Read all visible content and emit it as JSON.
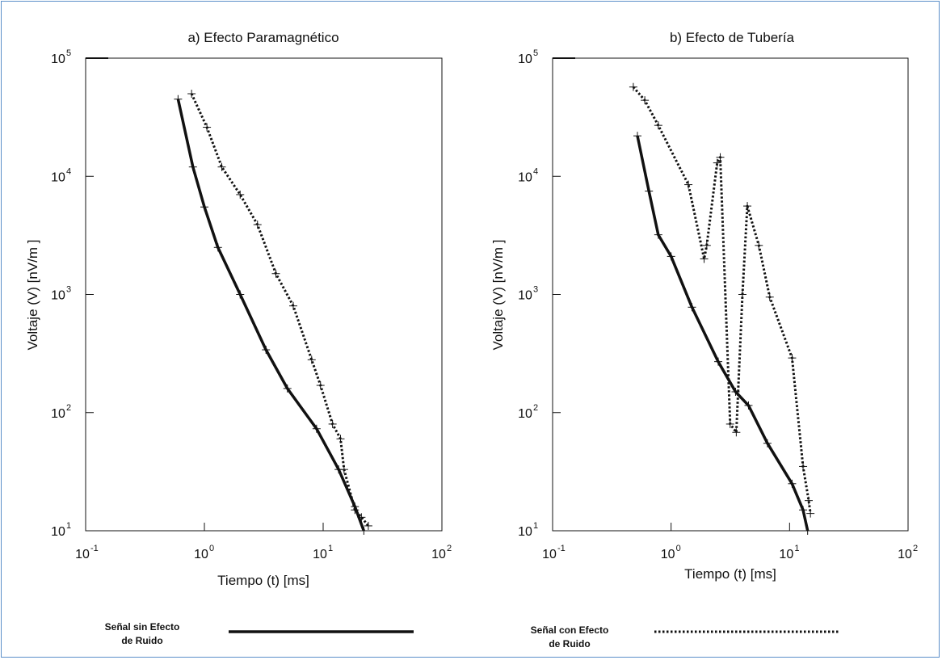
{
  "colors": {
    "frame": "#5b8fc9",
    "ink": "#111111"
  },
  "chart_data": [
    {
      "type": "line",
      "title": "a) Efecto Paramagnético",
      "xlabel": "Tiempo (t) [ms]",
      "ylabel": "Voltaje (V) [nV/m  ]",
      "xscale": "log",
      "yscale": "log",
      "xlim": [
        0.1,
        100
      ],
      "ylim": [
        10,
        100000
      ],
      "x_ticks": [
        {
          "base": "10",
          "exp": "-1"
        },
        {
          "base": "10",
          "exp": "0"
        },
        {
          "base": "10",
          "exp": "1"
        },
        {
          "base": "10",
          "exp": "2"
        }
      ],
      "y_ticks": [
        {
          "base": "10",
          "exp": "1"
        },
        {
          "base": "10",
          "exp": "2"
        },
        {
          "base": "10",
          "exp": "3"
        },
        {
          "base": "10",
          "exp": "4"
        },
        {
          "base": "10",
          "exp": "5"
        }
      ],
      "grid": false,
      "series": [
        {
          "name": "Señal sin Efecto de Ruido",
          "style": "solid",
          "points": [
            [
              0.6,
              45000
            ],
            [
              0.8,
              12000
            ],
            [
              1.0,
              5500
            ],
            [
              1.3,
              2500
            ],
            [
              2.0,
              1000
            ],
            [
              3.3,
              340
            ],
            [
              5.0,
              160
            ],
            [
              8.8,
              73
            ],
            [
              13.5,
              33
            ],
            [
              18.5,
              16
            ],
            [
              22.0,
              10
            ]
          ]
        },
        {
          "name": "Señal con Efecto de Ruido",
          "style": "dotted",
          "points": [
            [
              0.78,
              50000
            ],
            [
              1.05,
              26000
            ],
            [
              1.4,
              12000
            ],
            [
              2.0,
              7000
            ],
            [
              2.8,
              3900
            ],
            [
              4.0,
              1500
            ],
            [
              5.6,
              800
            ],
            [
              8.0,
              280
            ],
            [
              9.5,
              170
            ],
            [
              12.0,
              80
            ],
            [
              14.0,
              60
            ],
            [
              15.0,
              33
            ],
            [
              18.5,
              15
            ],
            [
              21.0,
              13
            ],
            [
              24.0,
              11
            ]
          ]
        }
      ]
    },
    {
      "type": "line",
      "title": "b) Efecto de Tubería",
      "xlabel": "Tiempo (t) [ms]",
      "ylabel": "Voltaje (V) [nV/m  ]",
      "xscale": "log",
      "yscale": "log",
      "xlim": [
        0.1,
        100
      ],
      "ylim": [
        10,
        100000
      ],
      "x_ticks": [
        {
          "base": "10",
          "exp": "-1"
        },
        {
          "base": "10",
          "exp": "0"
        },
        {
          "base": "10",
          "exp": "1"
        },
        {
          "base": "10",
          "exp": "2"
        }
      ],
      "y_ticks": [
        {
          "base": "10",
          "exp": "1"
        },
        {
          "base": "10",
          "exp": "2"
        },
        {
          "base": "10",
          "exp": "3"
        },
        {
          "base": "10",
          "exp": "4"
        },
        {
          "base": "10",
          "exp": "5"
        }
      ],
      "grid": false,
      "series": [
        {
          "name": "Señal sin Efecto de Ruido",
          "style": "solid",
          "points": [
            [
              0.52,
              22000
            ],
            [
              0.65,
              7500
            ],
            [
              0.78,
              3200
            ],
            [
              1.0,
              2100
            ],
            [
              1.5,
              780
            ],
            [
              2.5,
              270
            ],
            [
              3.5,
              150
            ],
            [
              4.5,
              115
            ],
            [
              6.5,
              55
            ],
            [
              10.5,
              25
            ],
            [
              13.0,
              15
            ],
            [
              14.2,
              10
            ]
          ]
        },
        {
          "name": "Señal con Efecto de Ruido",
          "style": "dotted",
          "points": [
            [
              0.48,
              57000
            ],
            [
              0.6,
              44000
            ],
            [
              0.78,
              27000
            ],
            [
              1.4,
              8500
            ],
            [
              1.9,
              2000
            ],
            [
              2.0,
              2600
            ],
            [
              2.45,
              13000
            ],
            [
              2.6,
              14500
            ],
            [
              3.15,
              80
            ],
            [
              3.55,
              68
            ],
            [
              4.0,
              1000
            ],
            [
              4.4,
              5600
            ],
            [
              5.5,
              2600
            ],
            [
              6.8,
              950
            ],
            [
              10.5,
              290
            ],
            [
              13.0,
              35
            ],
            [
              14.5,
              18
            ],
            [
              15.0,
              14
            ]
          ]
        }
      ]
    }
  ],
  "legend": {
    "items": [
      {
        "label_line1": "Señal sin Efecto",
        "label_line2": "de Ruido",
        "style": "solid"
      },
      {
        "label_line1": "Señal con Efecto",
        "label_line2": "de Ruido",
        "style": "dotted"
      }
    ]
  }
}
